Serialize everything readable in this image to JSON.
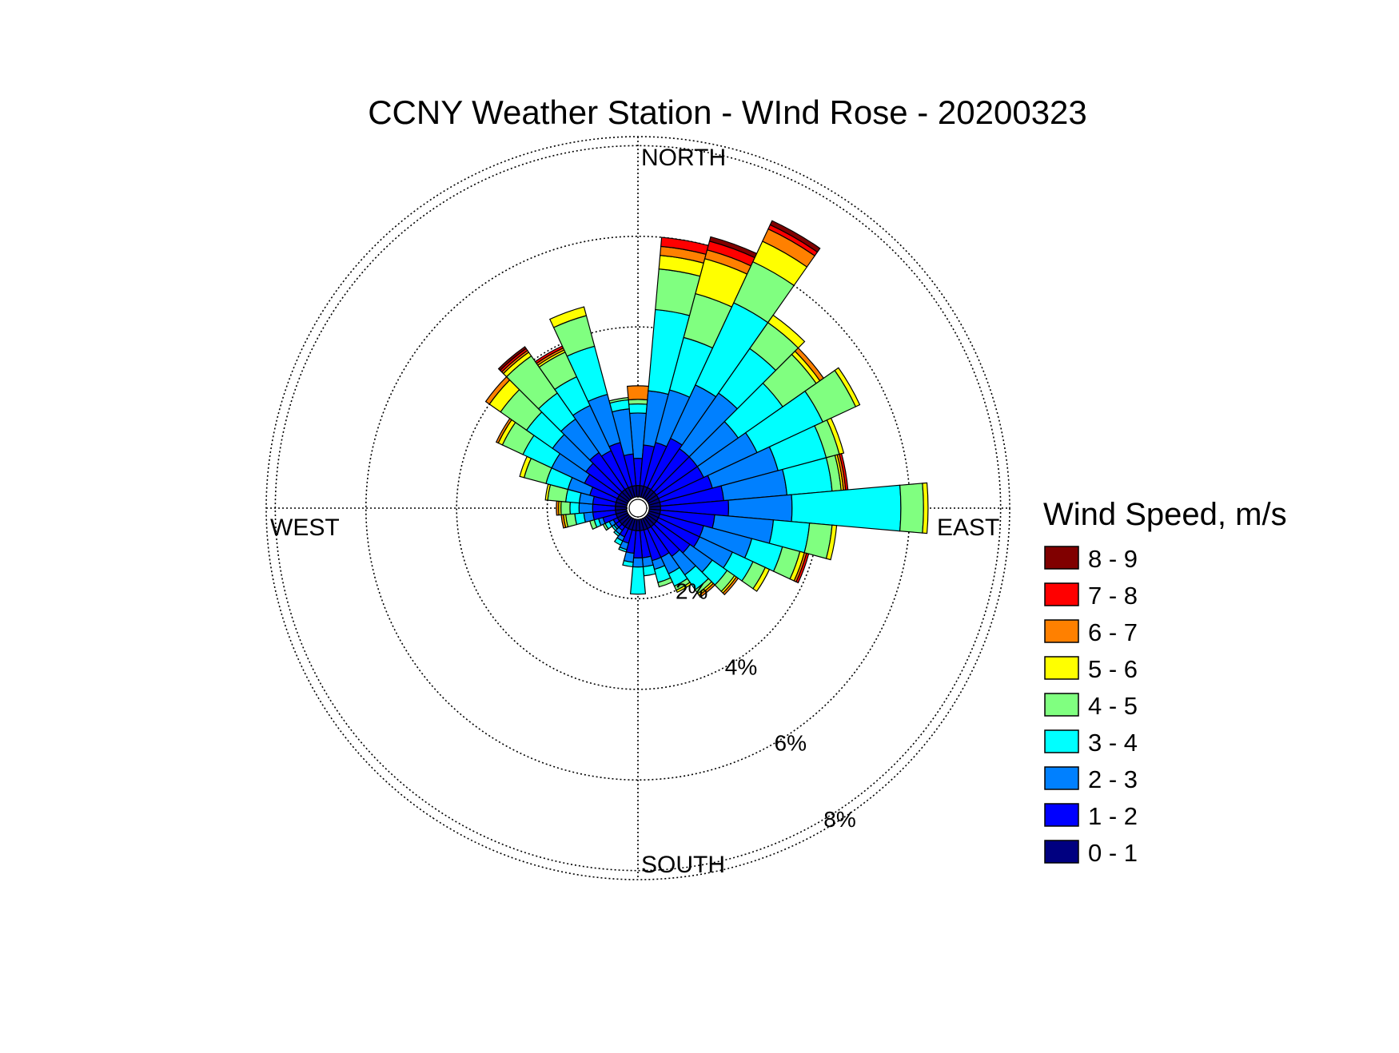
{
  "chart_data": {
    "type": "wind-rose",
    "title": "CCNY Weather Station - WInd Rose - 20200323",
    "directions": {
      "north": "NORTH",
      "east": "EAST",
      "south": "SOUTH",
      "west": "WEST"
    },
    "rings": [
      {
        "value": 2,
        "label": "2%"
      },
      {
        "value": 4,
        "label": "4%"
      },
      {
        "value": 6,
        "label": "6%"
      },
      {
        "value": 8,
        "label": "8%"
      }
    ],
    "rmax": 8.2,
    "hole": 0.25,
    "legend": {
      "title": "Wind Speed, m/s",
      "bins": [
        {
          "label": "8 - 9",
          "color": "#800000"
        },
        {
          "label": "7 - 8",
          "color": "#ff0000"
        },
        {
          "label": "6 - 7",
          "color": "#ff8000"
        },
        {
          "label": "5 - 6",
          "color": "#ffff00"
        },
        {
          "label": "4 - 5",
          "color": "#80ff80"
        },
        {
          "label": "3 - 4",
          "color": "#00ffff"
        },
        {
          "label": "2 - 3",
          "color": "#0080ff"
        },
        {
          "label": "1 - 2",
          "color": "#0000ff"
        },
        {
          "label": "0 - 1",
          "color": "#000080"
        }
      ]
    },
    "bin_order_inner_to_outer": [
      "0 - 1",
      "1 - 2",
      "2 - 3",
      "3 - 4",
      "4 - 5",
      "5 - 6",
      "6 - 7",
      "7 - 8",
      "8 - 9"
    ],
    "sector_width_deg": 10,
    "sectors": [
      {
        "dir": 0,
        "cum": [
          0.5,
          1.1,
          2.1,
          2.3,
          2.4,
          2.4,
          2.7
        ]
      },
      {
        "dir": 10,
        "cum": [
          0.5,
          1.4,
          2.6,
          4.4,
          5.3,
          5.6,
          5.8,
          6.0
        ]
      },
      {
        "dir": 20,
        "cum": [
          0.5,
          1.5,
          2.7,
          3.9,
          4.9,
          5.7,
          5.9,
          6.1,
          6.2
        ]
      },
      {
        "dir": 30,
        "cum": [
          0.5,
          1.7,
          3.0,
          5.0,
          6.0,
          6.5,
          6.8,
          6.9,
          7.0
        ]
      },
      {
        "dir": 40,
        "cum": [
          0.5,
          1.6,
          3.1,
          4.3,
          5.0,
          5.2
        ]
      },
      {
        "dir": 50,
        "cum": [
          0.5,
          1.6,
          2.7,
          3.9,
          4.8,
          4.9,
          5.0
        ]
      },
      {
        "dir": 60,
        "cum": [
          0.5,
          1.6,
          2.9,
          4.5,
          5.3,
          5.4
        ]
      },
      {
        "dir": 70,
        "cum": [
          0.5,
          1.7,
          3.2,
          4.3,
          4.6,
          4.7
        ]
      },
      {
        "dir": 80,
        "cum": [
          0.5,
          1.9,
          3.3,
          4.3,
          4.5,
          4.55,
          4.6,
          4.65
        ]
      },
      {
        "dir": 90,
        "cum": [
          0.5,
          2.0,
          3.4,
          5.8,
          6.3,
          6.4
        ]
      },
      {
        "dir": 100,
        "cum": [
          0.5,
          1.7,
          3.0,
          3.8,
          4.3,
          4.4
        ]
      },
      {
        "dir": 110,
        "cum": [
          0.5,
          1.5,
          2.6,
          3.3,
          3.7,
          3.8,
          3.85,
          3.9
        ]
      },
      {
        "dir": 120,
        "cum": [
          0.5,
          1.5,
          2.3,
          2.8,
          3.1,
          3.2
        ]
      },
      {
        "dir": 130,
        "cum": [
          0.5,
          1.4,
          2.0,
          2.4,
          2.6,
          2.65,
          2.7
        ]
      },
      {
        "dir": 140,
        "cum": [
          0.5,
          1.3,
          1.8,
          2.2,
          2.3,
          2.35,
          2.4
        ]
      },
      {
        "dir": 150,
        "cum": [
          0.5,
          1.2,
          1.6,
          1.9,
          2.0,
          2.05
        ]
      },
      {
        "dir": 160,
        "cum": [
          0.5,
          1.2,
          1.4,
          1.7,
          1.8
        ]
      },
      {
        "dir": 170,
        "cum": [
          0.5,
          1.1,
          1.3,
          1.5
        ]
      },
      {
        "dir": 180,
        "cum": [
          0.5,
          1.1,
          1.3,
          1.9
        ]
      },
      {
        "dir": 190,
        "cum": [
          0.5,
          1.0,
          1.2,
          1.3
        ]
      },
      {
        "dir": 200,
        "cum": [
          0.5,
          0.8,
          0.95,
          1.0
        ]
      },
      {
        "dir": 210,
        "cum": [
          0.5,
          0.7,
          0.8,
          0.9
        ]
      },
      {
        "dir": 220,
        "cum": [
          0.5,
          0.6,
          0.7,
          0.75
        ]
      },
      {
        "dir": 230,
        "cum": [
          0.5,
          0.6,
          0.65,
          0.7
        ]
      },
      {
        "dir": 240,
        "cum": [
          0.5,
          0.6,
          0.7,
          0.8,
          0.85
        ]
      },
      {
        "dir": 250,
        "cum": [
          0.5,
          0.8,
          0.9,
          1.0,
          1.1
        ]
      },
      {
        "dir": 260,
        "cum": [
          0.5,
          1.0,
          1.2,
          1.4,
          1.6,
          1.65,
          1.7
        ]
      },
      {
        "dir": 270,
        "cum": [
          0.5,
          1.0,
          1.3,
          1.5,
          1.7,
          1.75,
          1.8
        ]
      },
      {
        "dir": 280,
        "cum": [
          0.5,
          1.0,
          1.3,
          1.6,
          2.0,
          2.05
        ]
      },
      {
        "dir": 290,
        "cum": [
          0.5,
          1.1,
          1.6,
          2.1,
          2.6,
          2.7
        ]
      },
      {
        "dir": 300,
        "cum": [
          0.5,
          1.3,
          2.1,
          2.8,
          3.3,
          3.4,
          3.45
        ]
      },
      {
        "dir": 310,
        "cum": [
          0.5,
          1.4,
          2.3,
          3.0,
          3.7,
          4.0,
          4.1
        ]
      },
      {
        "dir": 320,
        "cum": [
          0.5,
          1.5,
          2.4,
          3.1,
          4.1,
          4.2,
          4.25,
          4.3,
          4.35
        ]
      },
      {
        "dir": 330,
        "cum": [
          0.5,
          1.4,
          2.5,
          3.2,
          3.8,
          3.85,
          3.9,
          3.95
        ]
      },
      {
        "dir": 340,
        "cum": [
          0.5,
          1.5,
          2.6,
          3.7,
          4.4,
          4.6
        ]
      },
      {
        "dir": 350,
        "cum": [
          0.5,
          1.2,
          2.2,
          2.4,
          2.45
        ]
      }
    ]
  }
}
